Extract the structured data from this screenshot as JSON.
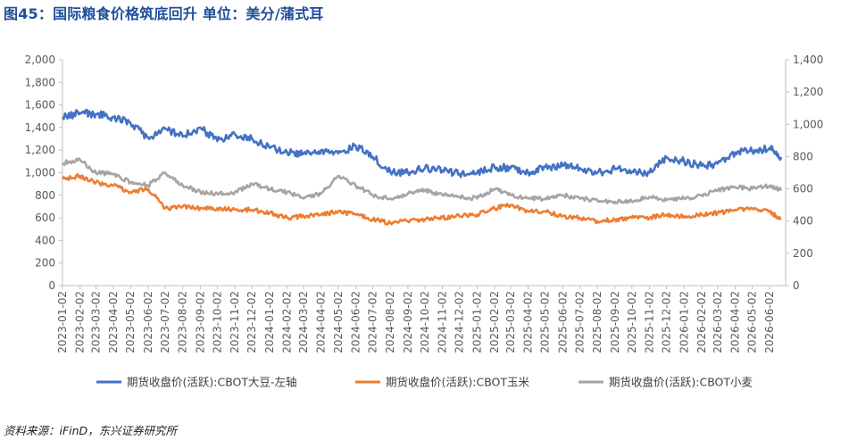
{
  "title": "图45：国际粮食价格筑底回升  单位：美分/蒲式耳",
  "source": "资料来源：iFinD，东兴证券研究所",
  "chart_data": {
    "type": "line",
    "title": "图45：国际粮食价格筑底回升  单位：美分/蒲式耳",
    "xlabel": "",
    "ylabel": "",
    "left_axis": {
      "ylim": [
        0,
        2000
      ],
      "ticks": [
        "0",
        "200",
        "400",
        "600",
        "800",
        "1,000",
        "1,200",
        "1,400",
        "1,600",
        "1,800",
        "2,000"
      ]
    },
    "right_axis": {
      "ylim": [
        0,
        1400
      ],
      "ticks": [
        "0",
        "200",
        "400",
        "600",
        "800",
        "1,000",
        "1,200",
        "1,400"
      ]
    },
    "x_tick_labels": [
      "2023-01-02",
      "2023-02-02",
      "2023-03-02",
      "2023-04-02",
      "2023-05-02",
      "2023-06-02",
      "2023-07-02",
      "2023-08-02",
      "2023-09-02",
      "2023-10-02",
      "2023-11-02",
      "2023-12-02",
      "2024-01-02",
      "2024-02-02",
      "2024-03-02",
      "2024-04-02",
      "2024-05-02",
      "2024-06-02",
      "2024-07-02",
      "2024-08-02",
      "2024-09-02",
      "2024-10-02",
      "2024-11-02",
      "2024-12-02",
      "2025-01-02",
      "2025-02-02",
      "2025-03-02",
      "2025-04-02",
      "2025-05-02",
      "2025-06-02",
      "2025-07-02",
      "2025-08-02",
      "2025-09-02",
      "2025-10-02",
      "2025-11-02",
      "2025-12-02",
      "2026-01-02",
      "2026-02-02",
      "2026-03-02",
      "2026-04-02",
      "2026-05-02",
      "2026-06-02"
    ],
    "grid": false,
    "legend_position": "bottom",
    "series": [
      {
        "name": "期货收盘价(活跃):CBOT大豆-左轴",
        "axis": "left",
        "color": "#4472C4",
        "x": [
          "2023-01-02",
          "2023-02-02",
          "2023-03-02",
          "2023-04-02",
          "2023-05-02",
          "2023-06-02",
          "2023-07-02",
          "2023-08-02",
          "2023-09-02",
          "2023-10-02",
          "2023-11-02",
          "2023-12-02",
          "2024-01-02",
          "2024-02-02",
          "2024-03-02",
          "2024-04-02",
          "2024-05-02",
          "2024-06-02",
          "2024-07-02",
          "2024-08-02",
          "2024-09-02",
          "2024-10-02",
          "2024-11-02",
          "2024-12-02",
          "2025-01-02",
          "2025-02-02",
          "2025-03-02",
          "2025-04-02",
          "2025-05-02",
          "2025-06-02",
          "2025-07-02",
          "2025-08-02",
          "2025-09-02",
          "2025-10-02",
          "2025-11-02",
          "2025-12-02",
          "2026-01-02",
          "2026-02-02",
          "2026-03-02",
          "2026-04-02",
          "2026-05-02",
          "2026-06-02",
          "2026-06-22"
        ],
        "values": [
          1490,
          1530,
          1520,
          1490,
          1440,
          1310,
          1390,
          1320,
          1400,
          1280,
          1340,
          1300,
          1220,
          1180,
          1170,
          1200,
          1170,
          1240,
          1140,
          1010,
          1000,
          1040,
          1020,
          990,
          1000,
          1050,
          1040,
          1000,
          1050,
          1060,
          1040,
          1000,
          1030,
          1010,
          1000,
          1140,
          1100,
          1060,
          1080,
          1180,
          1190,
          1220,
          1140
        ]
      },
      {
        "name": "期货收盘价(活跃):CBOT玉米",
        "axis": "right",
        "color": "#ED7D31",
        "x": [
          "2023-01-02",
          "2023-02-02",
          "2023-03-02",
          "2023-04-02",
          "2023-05-02",
          "2023-06-02",
          "2023-07-02",
          "2023-08-02",
          "2023-09-02",
          "2023-10-02",
          "2023-11-02",
          "2023-12-02",
          "2024-01-02",
          "2024-02-02",
          "2024-03-02",
          "2024-04-02",
          "2024-05-02",
          "2024-06-02",
          "2024-07-02",
          "2024-08-02",
          "2024-09-02",
          "2024-10-02",
          "2024-11-02",
          "2024-12-02",
          "2025-01-02",
          "2025-02-02",
          "2025-03-02",
          "2025-04-02",
          "2025-05-02",
          "2025-06-02",
          "2025-07-02",
          "2025-08-02",
          "2025-09-02",
          "2025-10-02",
          "2025-11-02",
          "2025-12-02",
          "2026-01-02",
          "2026-02-02",
          "2026-03-02",
          "2026-04-02",
          "2026-05-02",
          "2026-06-02",
          "2026-06-22"
        ],
        "values": [
          660,
          680,
          640,
          620,
          580,
          600,
          480,
          490,
          480,
          480,
          470,
          470,
          450,
          420,
          430,
          440,
          460,
          440,
          410,
          390,
          400,
          410,
          420,
          430,
          440,
          480,
          500,
          460,
          460,
          430,
          420,
          400,
          410,
          420,
          420,
          440,
          430,
          440,
          450,
          470,
          480,
          460,
          410
        ]
      },
      {
        "name": "期货收盘价(活跃):CBOT小麦",
        "axis": "right",
        "color": "#A5A5A5",
        "x": [
          "2023-01-02",
          "2023-02-02",
          "2023-03-02",
          "2023-04-02",
          "2023-05-02",
          "2023-06-02",
          "2023-07-02",
          "2023-08-02",
          "2023-09-02",
          "2023-10-02",
          "2023-11-02",
          "2023-12-02",
          "2024-01-02",
          "2024-02-02",
          "2024-03-02",
          "2024-04-02",
          "2024-05-02",
          "2024-06-02",
          "2024-07-02",
          "2024-08-02",
          "2024-09-02",
          "2024-10-02",
          "2024-11-02",
          "2024-12-02",
          "2025-01-02",
          "2025-02-02",
          "2025-03-02",
          "2025-04-02",
          "2025-05-02",
          "2025-06-02",
          "2025-07-02",
          "2025-08-02",
          "2025-09-02",
          "2025-10-02",
          "2025-11-02",
          "2025-12-02",
          "2026-01-02",
          "2026-02-02",
          "2026-03-02",
          "2026-04-02",
          "2026-05-02",
          "2026-06-02",
          "2026-06-22"
        ],
        "values": [
          760,
          780,
          700,
          690,
          640,
          620,
          700,
          620,
          580,
          570,
          580,
          630,
          600,
          580,
          540,
          570,
          680,
          620,
          560,
          540,
          570,
          590,
          560,
          550,
          540,
          600,
          560,
          540,
          540,
          560,
          540,
          530,
          520,
          520,
          550,
          530,
          540,
          560,
          590,
          610,
          600,
          620,
          590
        ]
      }
    ]
  }
}
